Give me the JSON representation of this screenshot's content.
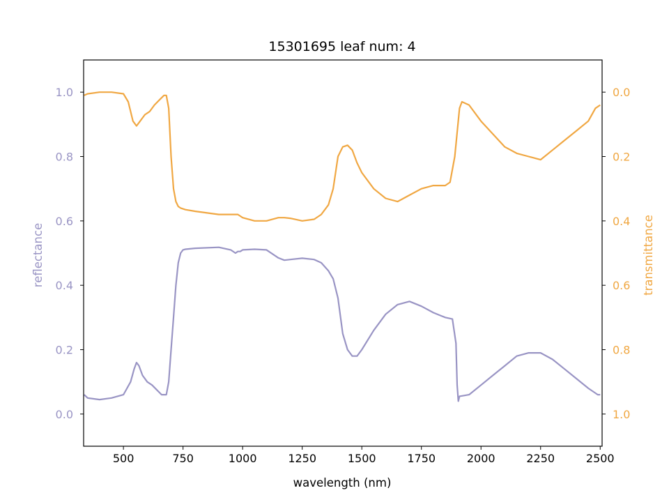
{
  "chart_data": {
    "type": "line",
    "title": "15301695 leaf num: 4",
    "xlabel": "wavelength (nm)",
    "ylabel_left": "reflectance",
    "ylabel_right": "transmittance",
    "xlim": [
      333,
      2508
    ],
    "ylim_left": [
      -0.1,
      1.1
    ],
    "ylim_right": [
      1.1,
      -0.1
    ],
    "right_axis_inverted": true,
    "x_ticks": [
      500,
      750,
      1000,
      1250,
      1500,
      1750,
      2000,
      2250,
      2500
    ],
    "y_ticks_left": [
      0.0,
      0.2,
      0.4,
      0.6,
      0.8,
      1.0
    ],
    "y_ticks_right": [
      0.0,
      0.2,
      0.4,
      0.6,
      0.8,
      1.0
    ],
    "grid": false,
    "colors": {
      "reflectance": "#9994c4",
      "transmittance": "#f0a742",
      "axis": "#000000"
    },
    "series": [
      {
        "name": "reflectance",
        "axis": "left",
        "color": "#9994c4",
        "x": [
          335,
          350,
          400,
          450,
          500,
          530,
          545,
          555,
          565,
          580,
          600,
          620,
          640,
          660,
          680,
          690,
          700,
          710,
          720,
          730,
          740,
          750,
          760,
          800,
          900,
          950,
          970,
          980,
          990,
          1000,
          1050,
          1100,
          1150,
          1175,
          1200,
          1250,
          1300,
          1330,
          1360,
          1380,
          1400,
          1420,
          1440,
          1460,
          1480,
          1500,
          1550,
          1600,
          1650,
          1700,
          1750,
          1800,
          1850,
          1880,
          1895,
          1900,
          1905,
          1910,
          1950,
          2000,
          2050,
          2100,
          2150,
          2200,
          2250,
          2300,
          2350,
          2400,
          2450,
          2490,
          2500
        ],
        "y": [
          0.06,
          0.05,
          0.045,
          0.05,
          0.06,
          0.1,
          0.14,
          0.16,
          0.15,
          0.12,
          0.1,
          0.09,
          0.075,
          0.06,
          0.06,
          0.1,
          0.2,
          0.3,
          0.4,
          0.47,
          0.5,
          0.51,
          0.512,
          0.515,
          0.518,
          0.51,
          0.5,
          0.505,
          0.505,
          0.51,
          0.512,
          0.51,
          0.485,
          0.478,
          0.48,
          0.484,
          0.48,
          0.47,
          0.445,
          0.42,
          0.36,
          0.25,
          0.2,
          0.18,
          0.18,
          0.2,
          0.26,
          0.31,
          0.34,
          0.35,
          0.335,
          0.315,
          0.3,
          0.295,
          0.22,
          0.09,
          0.04,
          0.055,
          0.06,
          0.09,
          0.12,
          0.15,
          0.18,
          0.19,
          0.19,
          0.17,
          0.14,
          0.11,
          0.08,
          0.06,
          0.06
        ]
      },
      {
        "name": "transmittance",
        "axis": "right",
        "color": "#f0a742",
        "x": [
          335,
          350,
          400,
          450,
          500,
          520,
          540,
          555,
          570,
          590,
          610,
          630,
          650,
          670,
          680,
          690,
          700,
          710,
          720,
          730,
          740,
          760,
          800,
          900,
          950,
          970,
          980,
          990,
          1000,
          1050,
          1100,
          1150,
          1175,
          1200,
          1250,
          1300,
          1330,
          1360,
          1380,
          1400,
          1420,
          1440,
          1460,
          1480,
          1500,
          1550,
          1600,
          1650,
          1700,
          1750,
          1800,
          1850,
          1870,
          1890,
          1910,
          1920,
          1950,
          2000,
          2050,
          2100,
          2150,
          2200,
          2250,
          2300,
          2350,
          2400,
          2450,
          2480,
          2500
        ],
        "y": [
          0.01,
          0.005,
          0.0,
          0.0,
          0.005,
          0.03,
          0.09,
          0.105,
          0.09,
          0.07,
          0.06,
          0.04,
          0.025,
          0.01,
          0.01,
          0.05,
          0.2,
          0.3,
          0.34,
          0.355,
          0.36,
          0.365,
          0.37,
          0.38,
          0.38,
          0.38,
          0.38,
          0.385,
          0.39,
          0.4,
          0.4,
          0.39,
          0.39,
          0.392,
          0.4,
          0.395,
          0.38,
          0.35,
          0.3,
          0.2,
          0.17,
          0.165,
          0.18,
          0.22,
          0.25,
          0.3,
          0.33,
          0.34,
          0.32,
          0.3,
          0.29,
          0.29,
          0.28,
          0.2,
          0.05,
          0.03,
          0.04,
          0.09,
          0.13,
          0.17,
          0.19,
          0.2,
          0.21,
          0.18,
          0.15,
          0.12,
          0.09,
          0.05,
          0.04
        ]
      }
    ]
  }
}
